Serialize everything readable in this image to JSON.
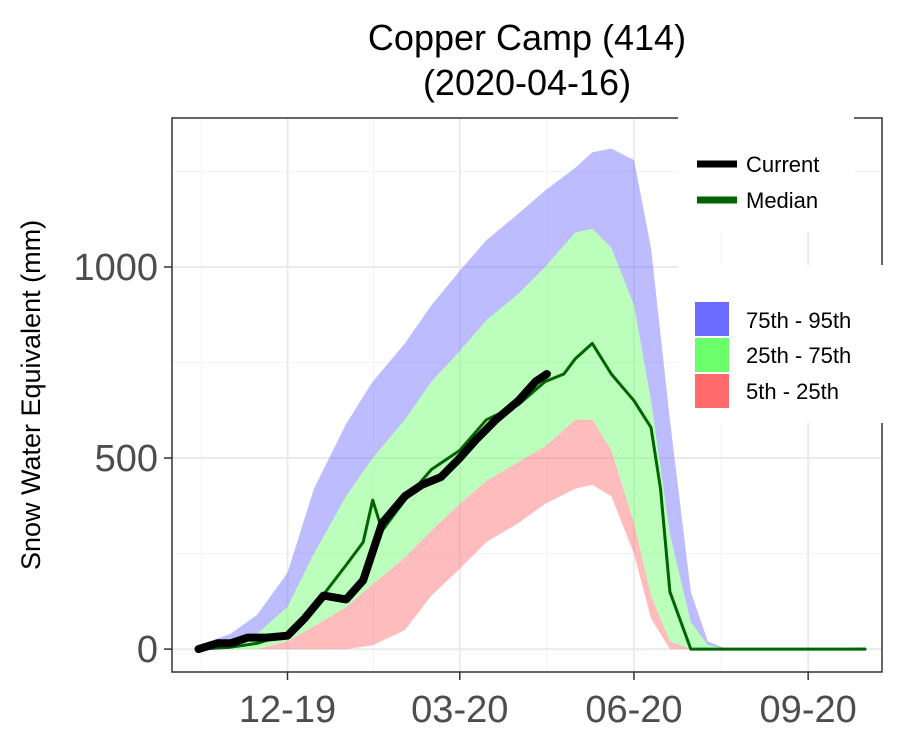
{
  "chart_data": {
    "type": "area",
    "title": "Copper Camp (414)",
    "subtitle": "(2020-04-16)",
    "xlabel": "",
    "ylabel": "Snow Water Equivalent (mm)",
    "x_range": [
      "2019-10-01",
      "2020-10-10"
    ],
    "y_range": [
      -60,
      1390
    ],
    "x_ticks": [
      {
        "label": "12-19",
        "date": "2019-12-01"
      },
      {
        "label": "03-20",
        "date": "2020-03-01"
      },
      {
        "label": "06-20",
        "date": "2020-06-01"
      },
      {
        "label": "09-20",
        "date": "2020-09-01"
      }
    ],
    "y_ticks": [
      0,
      500,
      1000
    ],
    "grid": true,
    "legend_position": "right",
    "legend": {
      "lines": [
        {
          "label": "Current",
          "color": "#000000"
        },
        {
          "label": "Median",
          "color": "#006400"
        }
      ],
      "bands": [
        {
          "label": "75th - 95th",
          "color": "#6b6bff"
        },
        {
          "label": "25th - 75th",
          "color": "#6bff6b"
        },
        {
          "label": "5th - 25th",
          "color": "#ff6b6b"
        }
      ]
    },
    "percentile_bands": {
      "dates": [
        "2019-10-15",
        "2019-11-01",
        "2019-11-15",
        "2019-12-01",
        "2019-12-15",
        "2020-01-01",
        "2020-01-15",
        "2020-02-01",
        "2020-02-15",
        "2020-03-01",
        "2020-03-15",
        "2020-04-01",
        "2020-04-15",
        "2020-05-01",
        "2020-05-10",
        "2020-05-20",
        "2020-06-01",
        "2020-06-10",
        "2020-06-20",
        "2020-07-01",
        "2020-07-10",
        "2020-07-20",
        "2020-08-01",
        "2020-09-01",
        "2020-10-01"
      ],
      "p5": [
        0,
        0,
        0,
        0,
        0,
        0,
        10,
        50,
        140,
        210,
        280,
        330,
        380,
        420,
        430,
        400,
        250,
        80,
        0,
        0,
        0,
        0,
        0,
        0,
        0
      ],
      "p25": [
        0,
        0,
        0,
        20,
        60,
        110,
        170,
        240,
        310,
        380,
        440,
        490,
        530,
        600,
        600,
        520,
        330,
        140,
        20,
        0,
        0,
        0,
        0,
        0,
        0
      ],
      "p75": [
        10,
        20,
        40,
        110,
        250,
        400,
        500,
        600,
        700,
        780,
        860,
        930,
        1000,
        1090,
        1100,
        1050,
        900,
        650,
        300,
        70,
        10,
        0,
        0,
        0,
        0
      ],
      "p95": [
        10,
        40,
        90,
        200,
        420,
        590,
        700,
        800,
        900,
        990,
        1070,
        1140,
        1200,
        1260,
        1300,
        1310,
        1280,
        1050,
        600,
        150,
        20,
        0,
        0,
        0,
        5
      ]
    },
    "series": [
      {
        "name": "Median",
        "dates": [
          "2019-10-15",
          "2019-11-01",
          "2019-11-15",
          "2019-12-01",
          "2019-12-15",
          "2020-01-01",
          "2020-01-10",
          "2020-01-15",
          "2020-01-20",
          "2020-02-01",
          "2020-02-15",
          "2020-03-01",
          "2020-03-15",
          "2020-04-01",
          "2020-04-15",
          "2020-04-25",
          "2020-05-01",
          "2020-05-10",
          "2020-05-20",
          "2020-06-01",
          "2020-06-10",
          "2020-06-15",
          "2020-06-20",
          "2020-07-01",
          "2020-08-01",
          "2020-09-01",
          "2020-10-01"
        ],
        "values": [
          0,
          5,
          15,
          40,
          110,
          220,
          280,
          390,
          310,
          390,
          470,
          520,
          600,
          640,
          700,
          720,
          760,
          800,
          720,
          650,
          580,
          420,
          150,
          0,
          0,
          0,
          0
        ]
      },
      {
        "name": "Current",
        "dates": [
          "2019-10-15",
          "2019-10-25",
          "2019-11-01",
          "2019-11-10",
          "2019-11-20",
          "2019-12-01",
          "2019-12-10",
          "2019-12-20",
          "2020-01-01",
          "2020-01-10",
          "2020-01-20",
          "2020-02-01",
          "2020-02-10",
          "2020-02-20",
          "2020-03-01",
          "2020-03-10",
          "2020-03-20",
          "2020-04-01",
          "2020-04-10",
          "2020-04-16"
        ],
        "values": [
          0,
          15,
          15,
          30,
          30,
          35,
          80,
          140,
          130,
          180,
          330,
          400,
          430,
          450,
          500,
          550,
          600,
          650,
          700,
          720
        ]
      }
    ]
  }
}
